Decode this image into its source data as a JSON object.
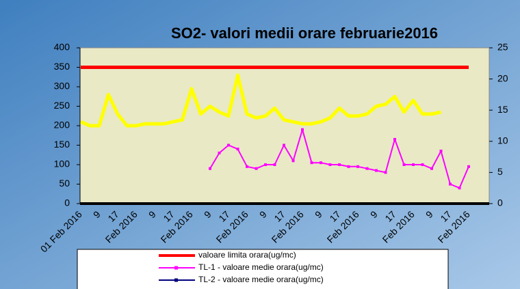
{
  "chart_data": {
    "type": "line",
    "title": "SO2- valori medii orare  februarie2016",
    "categories": [
      "01 Feb 2016",
      null,
      "9",
      null,
      "17",
      null,
      "Feb 2016",
      null,
      "9",
      null,
      "17",
      null,
      "Feb 2016",
      null,
      "9",
      null,
      "17",
      null,
      "Feb 2016",
      null,
      "9",
      null,
      "17",
      null,
      "Feb 2016",
      null,
      "9",
      null,
      "17",
      null,
      "Feb 2016",
      null,
      "9",
      null,
      "17",
      null,
      "Feb 2016",
      null,
      "9",
      null,
      "17",
      null,
      "Feb 2016"
    ],
    "series": [
      {
        "name": "valoare limita orara(ug/mc)",
        "color": "#ff0000",
        "width": 5,
        "marker": false,
        "values": [
          350,
          350,
          350,
          350,
          350,
          350,
          350,
          350,
          350,
          350,
          350,
          350,
          350,
          350,
          350,
          350,
          350,
          350,
          350,
          350,
          350,
          350,
          350,
          350,
          350,
          350,
          350,
          350,
          350,
          350,
          350,
          350,
          350,
          350,
          350,
          350,
          350,
          350,
          350,
          350,
          350,
          350,
          350
        ]
      },
      {
        "name": "TL-1 - valoare medie orara(ug/mc)",
        "color": "#ff00ff",
        "width": 2,
        "marker": true,
        "values": [
          null,
          null,
          null,
          null,
          null,
          null,
          null,
          null,
          null,
          null,
          null,
          null,
          null,
          null,
          90,
          130,
          150,
          140,
          95,
          90,
          100,
          100,
          150,
          110,
          190,
          105,
          105,
          100,
          100,
          95,
          95,
          90,
          85,
          80,
          165,
          100,
          100,
          100,
          90,
          135,
          50,
          40,
          95
        ]
      },
      {
        "name": "TL-2 - valoare medie orara(ug/mc)",
        "color": "#000080",
        "width": 2,
        "marker": true,
        "values": [
          null,
          null,
          null,
          null,
          null,
          null,
          null,
          null,
          null,
          null,
          null,
          null,
          null,
          null,
          null,
          null,
          null,
          null,
          null,
          null,
          null,
          null,
          null,
          null,
          null,
          null,
          null,
          null,
          null,
          null,
          null,
          null,
          null,
          null,
          null,
          null,
          null,
          null,
          null,
          null,
          null,
          null,
          null
        ]
      },
      {
        "color": "#ffff00",
        "width": 5,
        "marker": false,
        "values": [
          210,
          200,
          200,
          280,
          230,
          200,
          200,
          205,
          205,
          205,
          210,
          215,
          295,
          230,
          250,
          235,
          225,
          330,
          230,
          220,
          225,
          245,
          215,
          210,
          205,
          205,
          210,
          220,
          245,
          225,
          225,
          230,
          250,
          255,
          275,
          235,
          265,
          230,
          230,
          235,
          null,
          null,
          235
        ]
      }
    ],
    "ylim": [
      0,
      400
    ],
    "yticks": [
      0,
      50,
      100,
      150,
      200,
      250,
      300,
      350,
      400
    ],
    "y2lim": [
      0,
      25
    ],
    "y2ticks": [
      0,
      5,
      10,
      15,
      20,
      25
    ]
  }
}
